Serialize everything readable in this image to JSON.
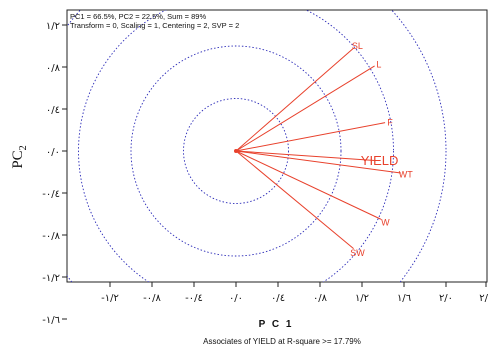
{
  "chart_data": {
    "type": "biplot",
    "info_line1": "PC1 = 66.5%, PC2 = 22.5%, Sum = 89%",
    "info_line2": "Transform = 0, Scaling = 1, Centering = 2, SVP = 2",
    "xlabel": "P C 1",
    "ylabel_main": "PC",
    "ylabel_sub": "2",
    "footnote": "Associates of YIELD at R-square >= 17.79%",
    "xlim": [
      -1.6,
      2.1
    ],
    "ylim": [
      -1.6,
      1.45
    ],
    "x_ticks": [
      {
        "value": -1.2,
        "label": "-۱/۲"
      },
      {
        "value": -0.8,
        "label": "-۰/۸"
      },
      {
        "value": -0.4,
        "label": "-۰/٤"
      },
      {
        "value": 0.0,
        "label": "۰/۰"
      },
      {
        "value": 0.4,
        "label": "۰/٤"
      },
      {
        "value": 0.8,
        "label": "۰/۸"
      },
      {
        "value": 1.2,
        "label": "۱/۲"
      },
      {
        "value": 1.6,
        "label": "۱/٦"
      },
      {
        "value": 2.0,
        "label": "۲/۰"
      },
      {
        "value": 2.4,
        "label": "۲/"
      }
    ],
    "y_ticks": [
      {
        "value": 1.2,
        "label": "۱/۲"
      },
      {
        "value": 0.8,
        "label": "۰/۸"
      },
      {
        "value": 0.4,
        "label": "۰/٤"
      },
      {
        "value": 0.0,
        "label": "۰/۰"
      },
      {
        "value": -0.4,
        "label": "-۰/٤"
      },
      {
        "value": -0.8,
        "label": "-۰/۸"
      },
      {
        "value": -1.2,
        "label": "-۱/۲"
      },
      {
        "value": -1.6,
        "label": "-۱/٦"
      }
    ],
    "circle_radii": [
      0.5,
      1.0,
      1.5,
      2.0
    ],
    "vectors": [
      {
        "label": "SL",
        "x": 1.12,
        "y": 0.98,
        "color": "#e8412c"
      },
      {
        "label": "L",
        "x": 1.32,
        "y": 0.81,
        "color": "#e8412c"
      },
      {
        "label": "F",
        "x": 1.42,
        "y": 0.27,
        "color": "#e8412c"
      },
      {
        "label": "YIELD",
        "x": 1.32,
        "y": -0.09,
        "color": "#e8412c",
        "highlight": true
      },
      {
        "label": "WT",
        "x": 1.57,
        "y": -0.21,
        "color": "#e8412c"
      },
      {
        "label": "W",
        "x": 1.38,
        "y": -0.65,
        "color": "#e8412c"
      },
      {
        "label": "SW",
        "x": 1.12,
        "y": -0.93,
        "color": "#e8412c"
      }
    ],
    "colors": {
      "vector": "#e8412c",
      "circle": "#2b2bb8",
      "axis": "#222222"
    }
  }
}
